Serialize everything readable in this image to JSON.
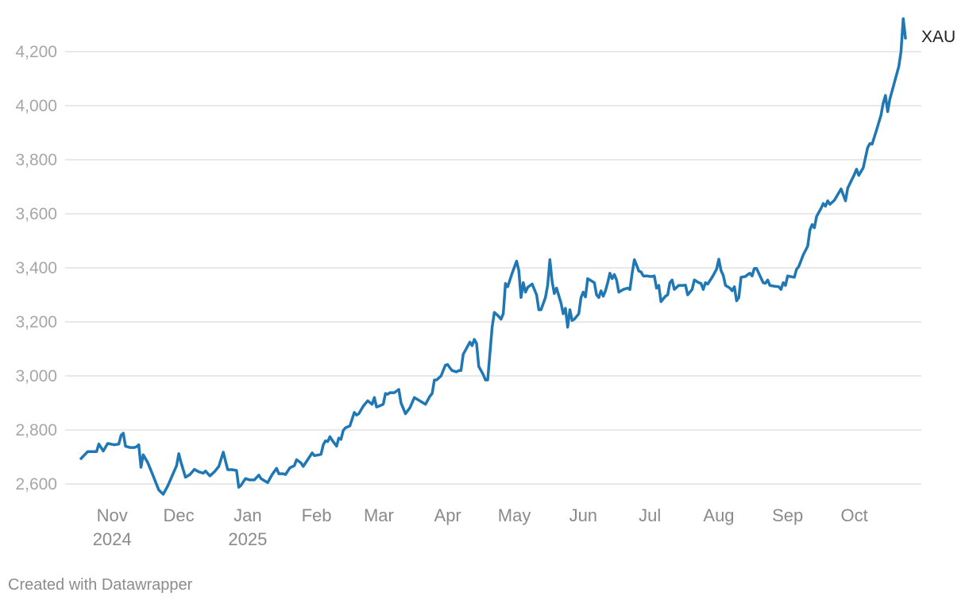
{
  "chart_data": {
    "type": "line",
    "series": [
      {
        "name": "XAU",
        "color": "#1f77b4",
        "points": [
          [
            "2024-10-18",
            2694
          ],
          [
            "2024-10-21",
            2720
          ],
          [
            "2024-10-23",
            2720
          ],
          [
            "2024-10-25",
            2720
          ],
          [
            "2024-10-26",
            2748
          ],
          [
            "2024-10-28",
            2722
          ],
          [
            "2024-10-30",
            2750
          ],
          [
            "2024-11-02",
            2745
          ],
          [
            "2024-11-04",
            2748
          ],
          [
            "2024-11-05",
            2780
          ],
          [
            "2024-11-06",
            2788
          ],
          [
            "2024-11-07",
            2740
          ],
          [
            "2024-11-09",
            2735
          ],
          [
            "2024-11-11",
            2735
          ],
          [
            "2024-11-12",
            2738
          ],
          [
            "2024-11-13",
            2745
          ],
          [
            "2024-11-14",
            2662
          ],
          [
            "2024-11-15",
            2708
          ],
          [
            "2024-11-17",
            2680
          ],
          [
            "2024-11-19",
            2640
          ],
          [
            "2024-11-22",
            2578
          ],
          [
            "2024-11-23",
            2570
          ],
          [
            "2024-11-24",
            2562
          ],
          [
            "2024-11-26",
            2592
          ],
          [
            "2024-11-28",
            2630
          ],
          [
            "2024-11-30",
            2668
          ],
          [
            "2024-12-01",
            2712
          ],
          [
            "2024-12-02",
            2680
          ],
          [
            "2024-12-04",
            2625
          ],
          [
            "2024-12-06",
            2635
          ],
          [
            "2024-12-08",
            2654
          ],
          [
            "2024-12-10",
            2645
          ],
          [
            "2024-12-12",
            2640
          ],
          [
            "2024-12-13",
            2648
          ],
          [
            "2024-12-15",
            2630
          ],
          [
            "2024-12-17",
            2645
          ],
          [
            "2024-12-19",
            2665
          ],
          [
            "2024-12-21",
            2718
          ],
          [
            "2024-12-23",
            2653
          ],
          [
            "2024-12-25",
            2653
          ],
          [
            "2024-12-27",
            2650
          ],
          [
            "2024-12-28",
            2588
          ],
          [
            "2024-12-29",
            2595
          ],
          [
            "2024-12-31",
            2620
          ],
          [
            "2025-01-02",
            2615
          ],
          [
            "2025-01-04",
            2615
          ],
          [
            "2025-01-06",
            2633
          ],
          [
            "2025-01-07",
            2620
          ],
          [
            "2025-01-09",
            2610
          ],
          [
            "2025-01-10",
            2605
          ],
          [
            "2025-01-12",
            2635
          ],
          [
            "2025-01-14",
            2658
          ],
          [
            "2025-01-15",
            2638
          ],
          [
            "2025-01-17",
            2638
          ],
          [
            "2025-01-18",
            2635
          ],
          [
            "2025-01-20",
            2660
          ],
          [
            "2025-01-22",
            2668
          ],
          [
            "2025-01-23",
            2690
          ],
          [
            "2025-01-25",
            2678
          ],
          [
            "2025-01-26",
            2665
          ],
          [
            "2025-01-28",
            2690
          ],
          [
            "2025-01-30",
            2715
          ],
          [
            "2025-01-31",
            2705
          ],
          [
            "2025-02-02",
            2708
          ],
          [
            "2025-02-03",
            2710
          ],
          [
            "2025-02-04",
            2745
          ],
          [
            "2025-02-05",
            2760
          ],
          [
            "2025-02-06",
            2757
          ],
          [
            "2025-02-07",
            2775
          ],
          [
            "2025-02-08",
            2762
          ],
          [
            "2025-02-10",
            2740
          ],
          [
            "2025-02-11",
            2770
          ],
          [
            "2025-02-12",
            2765
          ],
          [
            "2025-02-13",
            2798
          ],
          [
            "2025-02-14",
            2808
          ],
          [
            "2025-02-16",
            2815
          ],
          [
            "2025-02-18",
            2865
          ],
          [
            "2025-02-19",
            2855
          ],
          [
            "2025-02-20",
            2860
          ],
          [
            "2025-02-22",
            2888
          ],
          [
            "2025-02-24",
            2908
          ],
          [
            "2025-02-26",
            2895
          ],
          [
            "2025-02-27",
            2920
          ],
          [
            "2025-02-28",
            2885
          ],
          [
            "2025-03-01",
            2888
          ],
          [
            "2025-03-03",
            2895
          ],
          [
            "2025-03-04",
            2935
          ],
          [
            "2025-03-05",
            2932
          ],
          [
            "2025-03-06",
            2938
          ],
          [
            "2025-03-08",
            2938
          ],
          [
            "2025-03-10",
            2950
          ],
          [
            "2025-03-11",
            2900
          ],
          [
            "2025-03-13",
            2860
          ],
          [
            "2025-03-15",
            2882
          ],
          [
            "2025-03-17",
            2920
          ],
          [
            "2025-03-19",
            2910
          ],
          [
            "2025-03-21",
            2900
          ],
          [
            "2025-03-22",
            2895
          ],
          [
            "2025-03-24",
            2925
          ],
          [
            "2025-03-25",
            2935
          ],
          [
            "2025-03-26",
            2985
          ],
          [
            "2025-03-27",
            2985
          ],
          [
            "2025-03-29",
            3000
          ],
          [
            "2025-03-31",
            3040
          ],
          [
            "2025-04-01",
            3042
          ],
          [
            "2025-04-02",
            3030
          ],
          [
            "2025-04-03",
            3020
          ],
          [
            "2025-04-05",
            3015
          ],
          [
            "2025-04-06",
            3020
          ],
          [
            "2025-04-07",
            3020
          ],
          [
            "2025-04-08",
            3080
          ],
          [
            "2025-04-09",
            3095
          ],
          [
            "2025-04-11",
            3125
          ],
          [
            "2025-04-12",
            3112
          ],
          [
            "2025-04-13",
            3135
          ],
          [
            "2025-04-14",
            3120
          ],
          [
            "2025-04-15",
            3035
          ],
          [
            "2025-04-17",
            3005
          ],
          [
            "2025-04-18",
            2985
          ],
          [
            "2025-04-19",
            2985
          ],
          [
            "2025-04-21",
            3180
          ],
          [
            "2025-04-22",
            3235
          ],
          [
            "2025-04-24",
            3220
          ],
          [
            "2025-04-25",
            3210
          ],
          [
            "2025-04-26",
            3230
          ],
          [
            "2025-04-27",
            3342
          ],
          [
            "2025-04-28",
            3330
          ],
          [
            "2025-04-30",
            3380
          ],
          [
            "2025-05-02",
            3425
          ],
          [
            "2025-05-03",
            3390
          ],
          [
            "2025-05-04",
            3290
          ],
          [
            "2025-05-05",
            3345
          ],
          [
            "2025-05-06",
            3310
          ],
          [
            "2025-05-07",
            3328
          ],
          [
            "2025-05-09",
            3340
          ],
          [
            "2025-05-11",
            3300
          ],
          [
            "2025-05-12",
            3245
          ],
          [
            "2025-05-13",
            3245
          ],
          [
            "2025-05-15",
            3290
          ],
          [
            "2025-05-16",
            3335
          ],
          [
            "2025-05-17",
            3430
          ],
          [
            "2025-05-18",
            3350
          ],
          [
            "2025-05-19",
            3305
          ],
          [
            "2025-05-20",
            3325
          ],
          [
            "2025-05-22",
            3270
          ],
          [
            "2025-05-23",
            3230
          ],
          [
            "2025-05-24",
            3250
          ],
          [
            "2025-05-25",
            3180
          ],
          [
            "2025-05-26",
            3245
          ],
          [
            "2025-05-27",
            3205
          ],
          [
            "2025-05-28",
            3210
          ],
          [
            "2025-05-30",
            3230
          ],
          [
            "2025-05-31",
            3290
          ],
          [
            "2025-06-01",
            3310
          ],
          [
            "2025-06-02",
            3292
          ],
          [
            "2025-06-03",
            3360
          ],
          [
            "2025-06-05",
            3350
          ],
          [
            "2025-06-06",
            3345
          ],
          [
            "2025-06-07",
            3300
          ],
          [
            "2025-06-08",
            3290
          ],
          [
            "2025-06-09",
            3315
          ],
          [
            "2025-06-10",
            3295
          ],
          [
            "2025-06-11",
            3315
          ],
          [
            "2025-06-12",
            3345
          ],
          [
            "2025-06-13",
            3380
          ],
          [
            "2025-06-14",
            3360
          ],
          [
            "2025-06-15",
            3375
          ],
          [
            "2025-06-16",
            3355
          ],
          [
            "2025-06-17",
            3310
          ],
          [
            "2025-06-19",
            3320
          ],
          [
            "2025-06-21",
            3325
          ],
          [
            "2025-06-22",
            3320
          ],
          [
            "2025-06-23",
            3380
          ],
          [
            "2025-06-24",
            3430
          ],
          [
            "2025-06-25",
            3410
          ],
          [
            "2025-06-26",
            3388
          ],
          [
            "2025-06-27",
            3385
          ],
          [
            "2025-06-28",
            3370
          ],
          [
            "2025-06-30",
            3370
          ],
          [
            "2025-07-01",
            3368
          ],
          [
            "2025-07-02",
            3368
          ],
          [
            "2025-07-03",
            3370
          ],
          [
            "2025-07-04",
            3325
          ],
          [
            "2025-07-05",
            3335
          ],
          [
            "2025-07-06",
            3275
          ],
          [
            "2025-07-08",
            3295
          ],
          [
            "2025-07-09",
            3300
          ],
          [
            "2025-07-10",
            3345
          ],
          [
            "2025-07-11",
            3355
          ],
          [
            "2025-07-12",
            3320
          ],
          [
            "2025-07-14",
            3335
          ],
          [
            "2025-07-16",
            3335
          ],
          [
            "2025-07-17",
            3336
          ],
          [
            "2025-07-18",
            3300
          ],
          [
            "2025-07-20",
            3320
          ],
          [
            "2025-07-21",
            3355
          ],
          [
            "2025-07-23",
            3345
          ],
          [
            "2025-07-24",
            3342
          ],
          [
            "2025-07-25",
            3320
          ],
          [
            "2025-07-26",
            3345
          ],
          [
            "2025-07-27",
            3340
          ],
          [
            "2025-07-29",
            3365
          ],
          [
            "2025-07-31",
            3395
          ],
          [
            "2025-08-01",
            3432
          ],
          [
            "2025-08-02",
            3390
          ],
          [
            "2025-08-03",
            3372
          ],
          [
            "2025-08-04",
            3335
          ],
          [
            "2025-08-06",
            3325
          ],
          [
            "2025-08-07",
            3315
          ],
          [
            "2025-08-08",
            3330
          ],
          [
            "2025-08-09",
            3278
          ],
          [
            "2025-08-10",
            3290
          ],
          [
            "2025-08-11",
            3365
          ],
          [
            "2025-08-13",
            3368
          ],
          [
            "2025-08-14",
            3375
          ],
          [
            "2025-08-15",
            3380
          ],
          [
            "2025-08-16",
            3370
          ],
          [
            "2025-08-17",
            3398
          ],
          [
            "2025-08-18",
            3398
          ],
          [
            "2025-08-21",
            3345
          ],
          [
            "2025-08-22",
            3343
          ],
          [
            "2025-08-23",
            3355
          ],
          [
            "2025-08-24",
            3335
          ],
          [
            "2025-08-26",
            3332
          ],
          [
            "2025-08-28",
            3330
          ],
          [
            "2025-08-29",
            3320
          ],
          [
            "2025-08-30",
            3345
          ],
          [
            "2025-08-31",
            3335
          ],
          [
            "2025-09-01",
            3370
          ],
          [
            "2025-09-02",
            3368
          ],
          [
            "2025-09-04",
            3365
          ],
          [
            "2025-09-05",
            3395
          ],
          [
            "2025-09-06",
            3405
          ],
          [
            "2025-09-08",
            3448
          ],
          [
            "2025-09-10",
            3480
          ],
          [
            "2025-09-11",
            3540
          ],
          [
            "2025-09-12",
            3560
          ],
          [
            "2025-09-13",
            3548
          ],
          [
            "2025-09-14",
            3590
          ],
          [
            "2025-09-16",
            3620
          ],
          [
            "2025-09-17",
            3638
          ],
          [
            "2025-09-18",
            3628
          ],
          [
            "2025-09-19",
            3648
          ],
          [
            "2025-09-20",
            3635
          ],
          [
            "2025-09-22",
            3650
          ],
          [
            "2025-09-25",
            3692
          ],
          [
            "2025-09-27",
            3648
          ],
          [
            "2025-09-28",
            3695
          ],
          [
            "2025-10-01",
            3745
          ],
          [
            "2025-10-02",
            3765
          ],
          [
            "2025-10-03",
            3742
          ],
          [
            "2025-10-05",
            3770
          ],
          [
            "2025-10-07",
            3845
          ],
          [
            "2025-10-08",
            3860
          ],
          [
            "2025-10-09",
            3858
          ],
          [
            "2025-10-11",
            3910
          ],
          [
            "2025-10-13",
            3965
          ],
          [
            "2025-10-14",
            4010
          ],
          [
            "2025-10-15",
            4038
          ],
          [
            "2025-10-16",
            3978
          ],
          [
            "2025-10-17",
            4025
          ],
          [
            "2025-10-19",
            4085
          ],
          [
            "2025-10-21",
            4145
          ],
          [
            "2025-10-22",
            4200
          ],
          [
            "2025-10-23",
            4322
          ],
          [
            "2025-10-24",
            4250
          ]
        ]
      }
    ],
    "ylim": [
      2560,
      4330
    ],
    "xlim": [
      "2024-10-13",
      "2025-10-30"
    ],
    "yticks": [
      2600,
      2800,
      3000,
      3200,
      3400,
      3600,
      3800,
      4000,
      4200
    ],
    "ytick_labels": [
      "2,600",
      "2,800",
      "3,000",
      "3,200",
      "3,400",
      "3,600",
      "3,800",
      "4,000",
      "4,200"
    ],
    "xticks": [
      {
        "date": "2024-11-01",
        "label": "Nov",
        "sub": "2024"
      },
      {
        "date": "2024-12-01",
        "label": "Dec",
        "sub": ""
      },
      {
        "date": "2025-01-01",
        "label": "Jan",
        "sub": "2025"
      },
      {
        "date": "2025-02-01",
        "label": "Feb",
        "sub": ""
      },
      {
        "date": "2025-03-01",
        "label": "Mar",
        "sub": ""
      },
      {
        "date": "2025-04-01",
        "label": "Apr",
        "sub": ""
      },
      {
        "date": "2025-05-01",
        "label": "May",
        "sub": ""
      },
      {
        "date": "2025-06-01",
        "label": "Jun",
        "sub": ""
      },
      {
        "date": "2025-07-01",
        "label": "Jul",
        "sub": ""
      },
      {
        "date": "2025-08-01",
        "label": "Aug",
        "sub": ""
      },
      {
        "date": "2025-09-01",
        "label": "Sep",
        "sub": ""
      },
      {
        "date": "2025-10-01",
        "label": "Oct",
        "sub": ""
      }
    ],
    "grid": true,
    "legend": "direct label at line end",
    "title": "",
    "xlabel": "",
    "ylabel": ""
  },
  "footer": {
    "credit": "Created with Datawrapper"
  }
}
